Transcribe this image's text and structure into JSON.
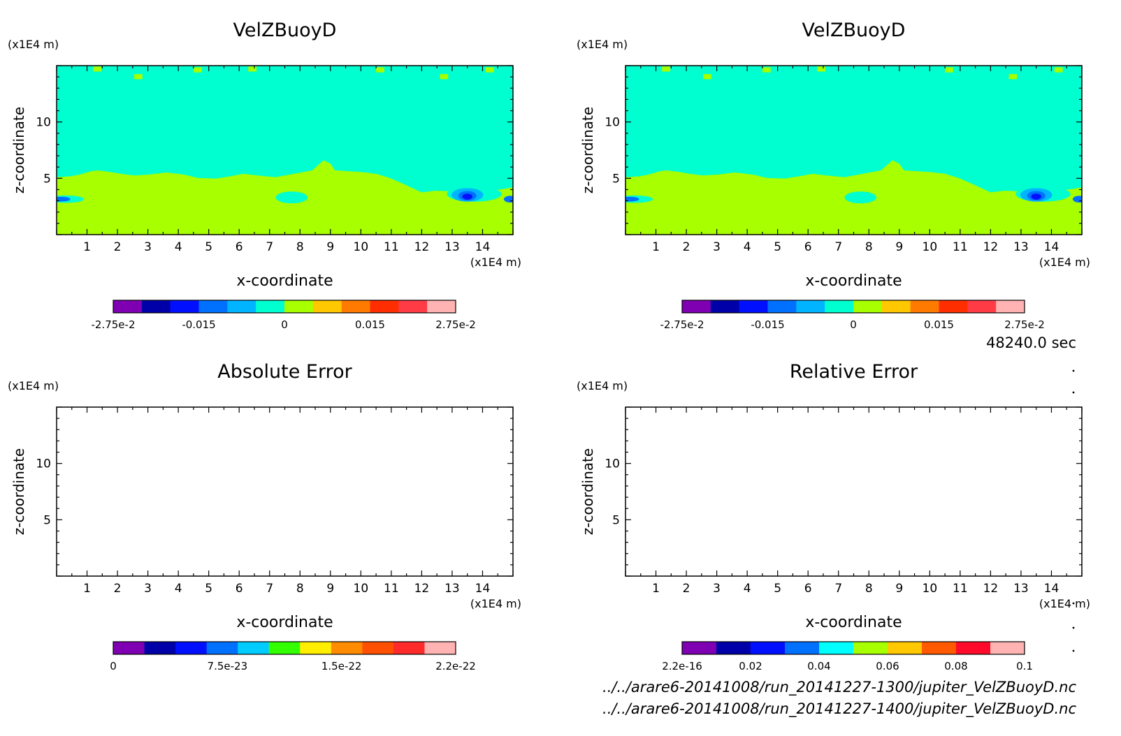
{
  "footer": {
    "time_label": "48240.0 sec",
    "file1": "../../arare6-20141008/run_20141227-1300/jupiter_VelZBuoyD.nc",
    "file2": "../../arare6-20141008/run_20141227-1400/jupiter_VelZBuoyD.nc"
  },
  "chart_data": [
    {
      "type": "heatmap",
      "title": "VelZBuoyD",
      "xlabel": "x-coordinate",
      "ylabel": "z-coordinate",
      "x_unit": "(x1E4 m)",
      "y_unit": "(x1E4 m)",
      "xlim": [
        0,
        15
      ],
      "ylim": [
        0,
        15
      ],
      "x_ticks": [
        "1",
        "2",
        "3",
        "4",
        "5",
        "6",
        "7",
        "8",
        "9",
        "10",
        "11",
        "12",
        "13",
        "14"
      ],
      "y_ticks": [
        "5",
        "10"
      ],
      "field": "filled",
      "colorbar": {
        "colors": [
          "#7f00b2",
          "#0000a8",
          "#0010ff",
          "#0070ff",
          "#00b4ff",
          "#00ffd0",
          "#a8ff00",
          "#ffc800",
          "#ff7a00",
          "#ff2e00",
          "#ff3c46",
          "#ffb3b3"
        ],
        "labels": [
          "-2.75e-2",
          "-0.015",
          "0",
          "0.015",
          "2.75e-2"
        ]
      }
    },
    {
      "type": "heatmap",
      "title": "VelZBuoyD",
      "xlabel": "x-coordinate",
      "ylabel": "z-coordinate",
      "x_unit": "(x1E4 m)",
      "y_unit": "(x1E4 m)",
      "xlim": [
        0,
        15
      ],
      "ylim": [
        0,
        15
      ],
      "x_ticks": [
        "1",
        "2",
        "3",
        "4",
        "5",
        "6",
        "7",
        "8",
        "9",
        "10",
        "11",
        "12",
        "13",
        "14"
      ],
      "y_ticks": [
        "5",
        "10"
      ],
      "field": "filled",
      "colorbar": {
        "colors": [
          "#7f00b2",
          "#0000a8",
          "#0010ff",
          "#0070ff",
          "#00b4ff",
          "#00ffd0",
          "#a8ff00",
          "#ffc800",
          "#ff7a00",
          "#ff2e00",
          "#ff3c46",
          "#ffb3b3"
        ],
        "labels": [
          "-2.75e-2",
          "-0.015",
          "0",
          "0.015",
          "2.75e-2"
        ]
      }
    },
    {
      "type": "heatmap",
      "title": "Absolute Error",
      "xlabel": "x-coordinate",
      "ylabel": "z-coordinate",
      "x_unit": "(x1E4 m)",
      "y_unit": "(x1E4 m)",
      "xlim": [
        0,
        15
      ],
      "ylim": [
        0,
        15
      ],
      "x_ticks": [
        "1",
        "2",
        "3",
        "4",
        "5",
        "6",
        "7",
        "8",
        "9",
        "10",
        "11",
        "12",
        "13",
        "14"
      ],
      "y_ticks": [
        "5",
        "10"
      ],
      "field": "empty",
      "colorbar": {
        "colors": [
          "#7f00b2",
          "#0000a8",
          "#0010ff",
          "#0070ff",
          "#00ccff",
          "#33ff00",
          "#ffee00",
          "#ff8c00",
          "#ff5000",
          "#ff2a2a",
          "#ffb3b3"
        ],
        "labels": [
          "0",
          "7.5e-23",
          "1.5e-22",
          "2.2e-22"
        ]
      }
    },
    {
      "type": "heatmap",
      "title": "Relative Error",
      "xlabel": "x-coordinate",
      "ylabel": "z-coordinate",
      "x_unit": "(x1E4 m)",
      "y_unit": "(x1E4 m)",
      "xlim": [
        0,
        15
      ],
      "ylim": [
        0,
        15
      ],
      "x_ticks": [
        "1",
        "2",
        "3",
        "4",
        "5",
        "6",
        "7",
        "8",
        "9",
        "10",
        "11",
        "12",
        "13",
        "14"
      ],
      "y_ticks": [
        "5",
        "10"
      ],
      "field": "empty",
      "colorbar": {
        "colors": [
          "#7f00b2",
          "#0000a8",
          "#0010ff",
          "#0070ff",
          "#00ffff",
          "#a8ff00",
          "#ffc800",
          "#ff5a00",
          "#ff0a2a",
          "#ffb3b3"
        ],
        "labels": [
          "2.2e-16",
          "0.02",
          "0.04",
          "0.06",
          "0.08",
          "0.1"
        ]
      }
    }
  ]
}
